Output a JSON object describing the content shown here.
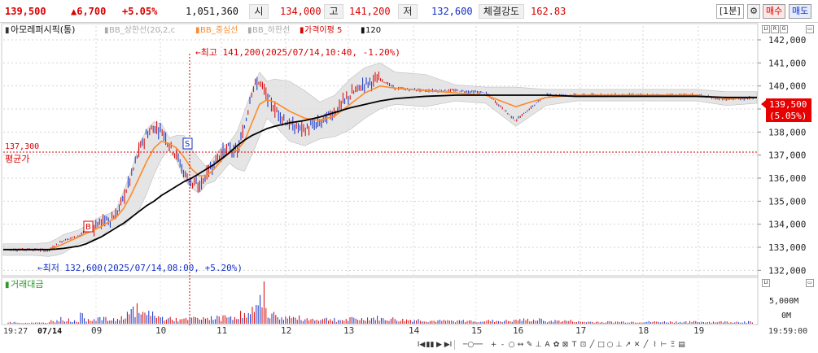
{
  "quote": {
    "price": "139,500",
    "change": "▲6,700",
    "change_pct": "+5.05%",
    "volume": "1,051,360",
    "open_label": "시",
    "open": "134,000",
    "high_label": "고",
    "high": "141,200",
    "low_label": "저",
    "low": "132,600",
    "strength_label": "체결강도",
    "strength": "162.83",
    "period": "[1분]",
    "buy_label": "매수",
    "sell_label": "매도"
  },
  "legend": {
    "name": "아모레퍼시픽(통)",
    "bb_upper": "BB_상한선(20,2,c",
    "bb_mid": "BB_중심선",
    "bb_lower": "BB_하한선",
    "disparity": "가격이평 5",
    "ma": "120"
  },
  "annotations": {
    "high_note": "←최고 141,200(2025/07/14,10:40, -1.20%)",
    "low_note": "←최저 132,600(2025/07/14,08:00, +5.20%)",
    "avg_value": "137,300",
    "avg_label": "평균가",
    "buy_marker": "B",
    "sell_marker": "S",
    "current_price": "139,500",
    "current_pct": "(5.05%)"
  },
  "volume_panel": {
    "title": "거래대금",
    "axis_labels": [
      "5,000M",
      "0M"
    ]
  },
  "corner_icons": [
    "LI",
    "R",
    "G"
  ],
  "time_labels": {
    "first": "19:27",
    "date": "07/14",
    "last": "19:59:00"
  },
  "toolbar": [
    "I◀",
    "▮▮",
    "▶",
    "▶I",
    "+",
    "-",
    "○",
    "↔",
    "✎",
    "⊥",
    "A",
    "✿",
    "⊠",
    "T",
    "⊡",
    "╱",
    "□",
    "○",
    "⊥",
    "↗",
    "✕",
    "╱",
    "⌇",
    "⊢",
    "Ξ",
    "▤"
  ],
  "colors": {
    "up": "#d80000",
    "down": "#1230c8",
    "bb_mid": "#ff8a2a",
    "ma120": "#000000",
    "band_fill": "#dcdcdc",
    "current_tag": "#e80000"
  },
  "chart_data": {
    "type": "line",
    "title": "",
    "x_ticks": [
      "09",
      "10",
      "11",
      "12",
      "13",
      "14",
      "15",
      "16",
      "17",
      "18",
      "19"
    ],
    "y_ticks": [
      132000,
      133000,
      134000,
      135000,
      136000,
      137000,
      138000,
      139000,
      140000,
      141000,
      142000
    ],
    "ylim": [
      131800,
      142600
    ],
    "x": [
      0,
      2,
      4,
      6,
      7,
      8,
      9,
      10,
      11,
      12,
      13,
      14,
      15,
      16,
      17,
      18,
      19,
      20,
      21,
      22,
      23,
      24,
      25,
      26,
      27,
      28,
      29,
      30,
      31,
      32,
      33,
      34,
      35,
      36,
      38,
      40,
      42,
      44,
      46,
      48,
      50,
      52,
      56,
      60,
      64,
      68,
      72,
      76,
      80,
      84,
      88,
      92,
      96,
      100
    ],
    "series": [
      {
        "values": [
          132900,
          132900,
          132900,
          132850,
          133100,
          133300,
          133400,
          133500,
          133700,
          133900,
          134100,
          134200,
          134400,
          135200,
          136100,
          137200,
          137900,
          138200,
          138100,
          137500,
          137000,
          136200,
          135800,
          135600,
          136200,
          136700,
          137100,
          137300,
          137100,
          138200,
          139900,
          140200,
          139500,
          139000,
          138300,
          138100,
          138400,
          138900,
          139600,
          140100,
          140300,
          139900,
          139800,
          139800,
          139700,
          138500,
          139600,
          139600,
          139600,
          139600,
          139600,
          139600,
          139400,
          139500
        ]
      },
      {
        "values": [
          132900,
          132900,
          132900,
          132900,
          133000,
          133150,
          133300,
          133450,
          133600,
          133750,
          133900,
          134100,
          134300,
          134700,
          135300,
          136000,
          136700,
          137300,
          137600,
          137500,
          137300,
          136900,
          136400,
          136100,
          136100,
          136400,
          136800,
          137100,
          137200,
          137600,
          138400,
          139200,
          139400,
          139300,
          138900,
          138600,
          138500,
          138700,
          139200,
          139700,
          140000,
          139900,
          139800,
          139700,
          139600,
          139100,
          139500,
          139600,
          139600,
          139600,
          139600,
          139600,
          139450,
          139500
        ]
      },
      {
        "values": [
          132900,
          132900,
          132900,
          132900,
          132920,
          132950,
          133000,
          133050,
          133150,
          133300,
          133450,
          133650,
          133850,
          134050,
          134300,
          134550,
          134800,
          135000,
          135250,
          135450,
          135650,
          135850,
          136000,
          136200,
          136400,
          136600,
          136850,
          137100,
          137400,
          137650,
          137850,
          138000,
          138150,
          138250,
          138400,
          138500,
          138650,
          138850,
          139050,
          139200,
          139350,
          139450,
          139550,
          139600,
          139600,
          139600,
          139600,
          139550,
          139550,
          139550,
          139550,
          139550,
          139500,
          139500
        ]
      }
    ],
    "grid": true,
    "volume_values": [
      0.2,
      0.1,
      0.1,
      0.3,
      0.5,
      0.4,
      0.3,
      0.8,
      0.5,
      0.6,
      0.5,
      0.4,
      0.6,
      1.2,
      1.5,
      1.0,
      1.3,
      0.7,
      0.6,
      0.5,
      0.4,
      0.5,
      0.6,
      0.5,
      0.7,
      0.6,
      0.7,
      0.8,
      1.0,
      0.9,
      1.4,
      3.6,
      1.0,
      0.7,
      0.6,
      0.5,
      0.5,
      0.4,
      0.5,
      0.6,
      0.5,
      0.4,
      0.3,
      0.3,
      0.3,
      0.4,
      0.3,
      0.2,
      0.2,
      0.2,
      0.2,
      0.2,
      0.2,
      0.3
    ]
  }
}
